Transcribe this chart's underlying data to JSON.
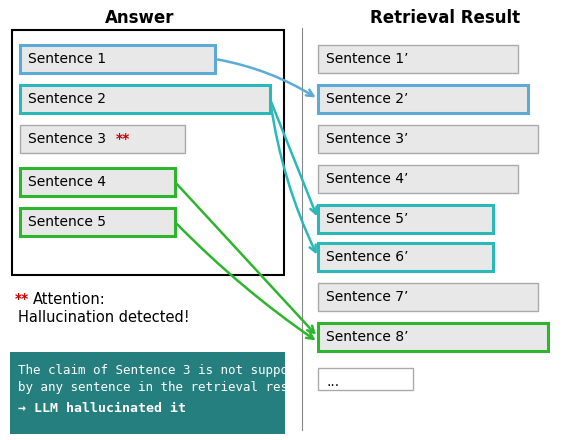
{
  "title_left": "Answer",
  "title_right": "Retrieval Result",
  "answer_sentences": [
    "Sentence 1",
    "Sentence 2",
    "Sentence 3",
    "Sentence 4",
    "Sentence 5"
  ],
  "retrieval_sentences": [
    "Sentence 1’",
    "Sentence 2’",
    "Sentence 3’",
    "Sentence 4’",
    "Sentence 5’",
    "Sentence 6’",
    "Sentence 7’",
    "Sentence 8’",
    "..."
  ],
  "bg_color": "#ffffff",
  "outer_box_color": "#000000",
  "answer_box_bg": "#e8e8e8",
  "retrieval_box_bg": "#e8e8e8",
  "blue_border": "#5baad8",
  "teal_border": "#2ab8b8",
  "green_border": "#2db52d",
  "teal_box_bg": "#267f7f",
  "arrow_blue": "#5baad8",
  "arrow_teal": "#2ab8b8",
  "arrow_green": "#2db52d",
  "red_color": "#cc0000",
  "white_text": "#ffffff",
  "divider_color": "#888888",
  "sentence3_border": "#aaaaaa",
  "retrieval_plain_border": "#aaaaaa"
}
